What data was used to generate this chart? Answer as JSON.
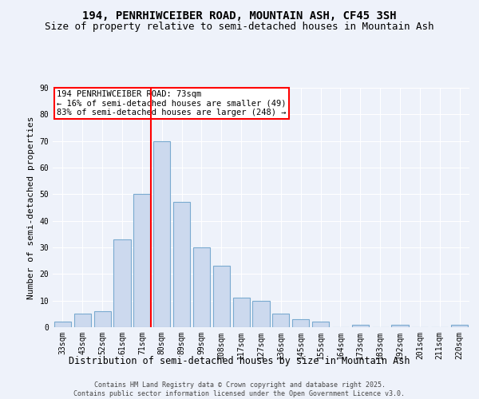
{
  "title1": "194, PENRHIWCEIBER ROAD, MOUNTAIN ASH, CF45 3SH",
  "title2": "Size of property relative to semi-detached houses in Mountain Ash",
  "xlabel": "Distribution of semi-detached houses by size in Mountain Ash",
  "ylabel": "Number of semi-detached properties",
  "categories": [
    "33sqm",
    "43sqm",
    "52sqm",
    "61sqm",
    "71sqm",
    "80sqm",
    "89sqm",
    "99sqm",
    "108sqm",
    "117sqm",
    "127sqm",
    "136sqm",
    "145sqm",
    "155sqm",
    "164sqm",
    "173sqm",
    "183sqm",
    "192sqm",
    "201sqm",
    "211sqm",
    "220sqm"
  ],
  "values": [
    2,
    5,
    6,
    33,
    50,
    70,
    47,
    30,
    23,
    11,
    10,
    5,
    3,
    2,
    0,
    1,
    0,
    1,
    0,
    0,
    1
  ],
  "bar_color": "#ccd9ee",
  "bar_edge_color": "#7aaad0",
  "vline_color": "red",
  "vline_index": 4.43,
  "annotation_text": "194 PENRHIWCEIBER ROAD: 73sqm\n← 16% of semi-detached houses are smaller (49)\n83% of semi-detached houses are larger (248) →",
  "annotation_box_color": "white",
  "annotation_box_edge": "red",
  "ylim": [
    0,
    90
  ],
  "yticks": [
    0,
    10,
    20,
    30,
    40,
    50,
    60,
    70,
    80,
    90
  ],
  "background_color": "#eef2fa",
  "footer": "Contains HM Land Registry data © Crown copyright and database right 2025.\nContains public sector information licensed under the Open Government Licence v3.0.",
  "title_fontsize": 10,
  "subtitle_fontsize": 9,
  "tick_fontsize": 7,
  "ylabel_fontsize": 8,
  "xlabel_fontsize": 8.5,
  "footer_fontsize": 6,
  "annot_fontsize": 7.5
}
